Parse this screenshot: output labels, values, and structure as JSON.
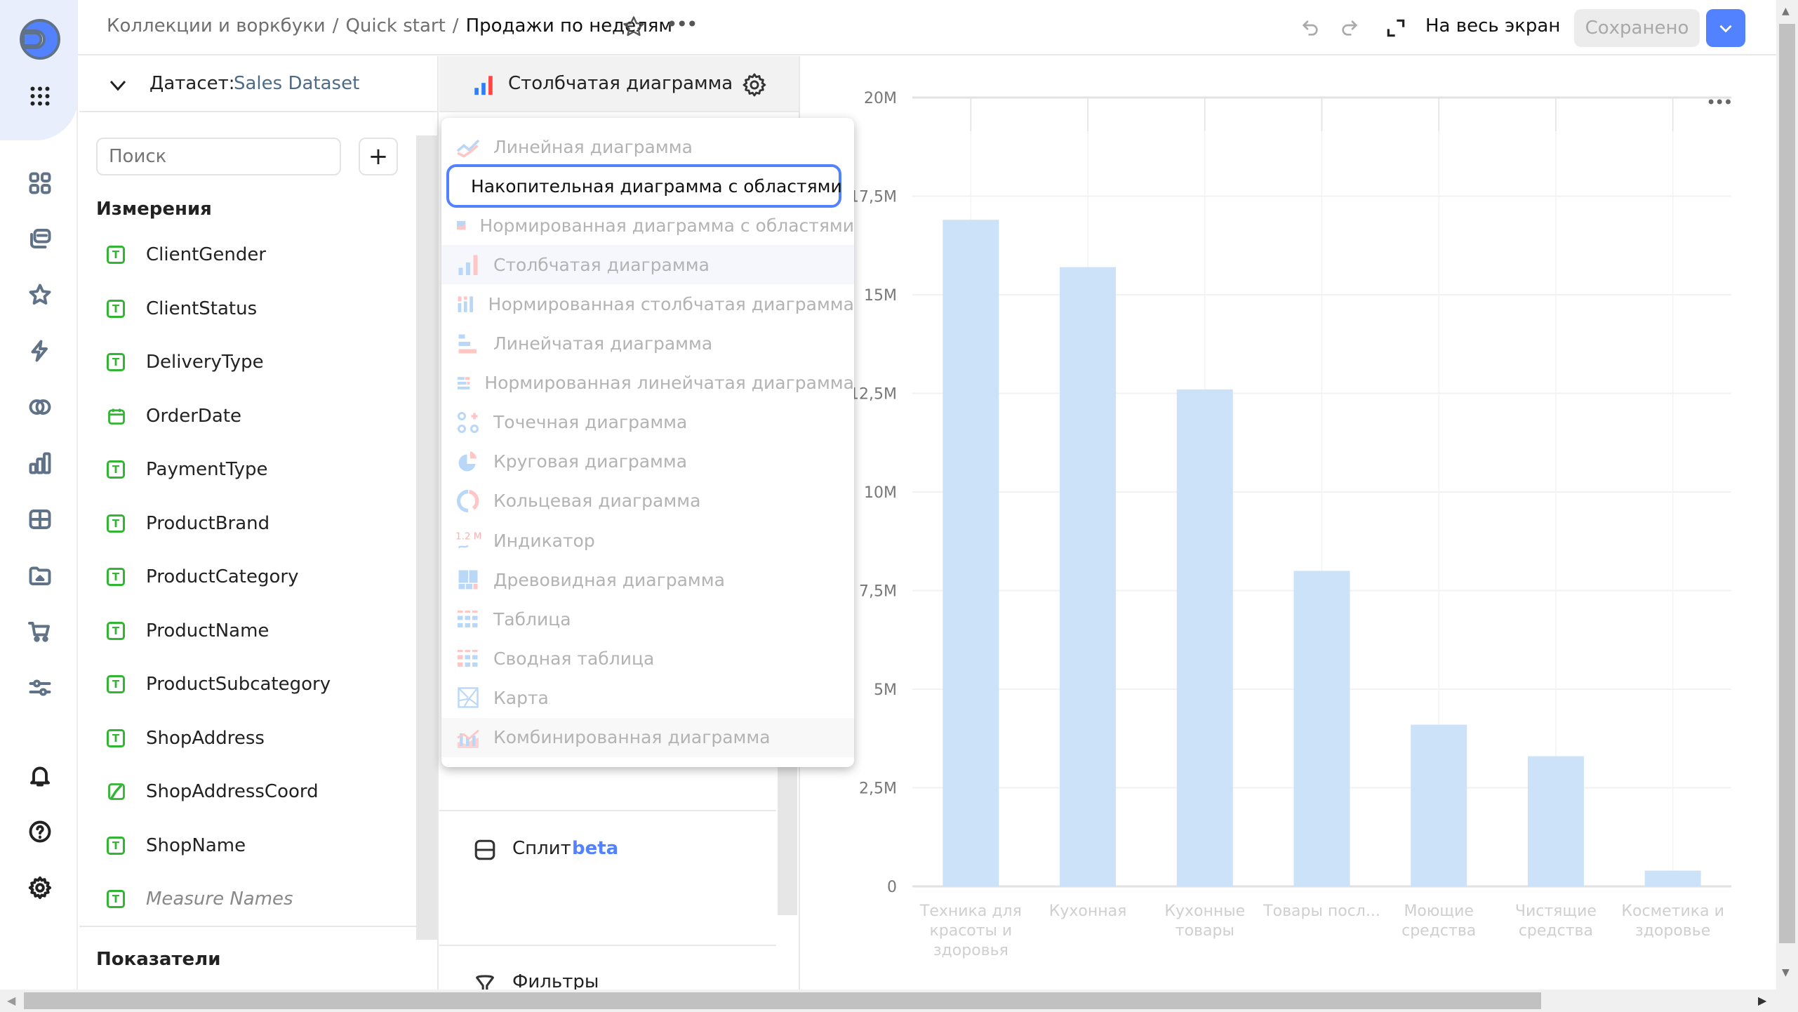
{
  "header": {
    "breadcrumbs": [
      "Коллекции и воркбуки",
      "Quick start"
    ],
    "separator": "/",
    "title": "Продажи по неделям",
    "fullscreen_label": "На весь экран",
    "saved_label": "Сохранено"
  },
  "rail": {
    "icons": [
      "logo-icon",
      "apps-grid-icon",
      "dashboards-icon",
      "collections-icon",
      "favorites-icon",
      "lightning-icon",
      "connections-icon",
      "charts-icon",
      "datasets-icon",
      "folder-icon",
      "cart-icon",
      "settings-sliders-icon",
      "bell-icon",
      "help-icon",
      "gear-icon"
    ]
  },
  "dataset_panel": {
    "label": "Датасет:",
    "dataset_name": "Sales Dataset",
    "search_placeholder": "Поиск",
    "add_label": "+",
    "dimensions_title": "Измерения",
    "dimensions": [
      {
        "name": "ClientGender",
        "type": "text"
      },
      {
        "name": "ClientStatus",
        "type": "text"
      },
      {
        "name": "DeliveryType",
        "type": "text"
      },
      {
        "name": "OrderDate",
        "type": "date"
      },
      {
        "name": "PaymentType",
        "type": "text"
      },
      {
        "name": "ProductBrand",
        "type": "text"
      },
      {
        "name": "ProductCategory",
        "type": "text"
      },
      {
        "name": "ProductName",
        "type": "text"
      },
      {
        "name": "ProductSubcategory",
        "type": "text"
      },
      {
        "name": "ShopAddress",
        "type": "text"
      },
      {
        "name": "ShopAddressCoord",
        "type": "geo"
      },
      {
        "name": "ShopName",
        "type": "text"
      },
      {
        "name": "Measure Names",
        "type": "text",
        "italic": true
      }
    ],
    "measures_title": "Показатели"
  },
  "viz_panel": {
    "current_type": "Столбчатая диаграмма",
    "split_label": "Сплит",
    "split_badge": "beta",
    "filters_label": "Фильтры"
  },
  "chart_type_menu": {
    "selected_index": 1,
    "hovered_index": 3,
    "items": [
      {
        "label": "Линейная диаграмма",
        "icon": "line-chart-icon"
      },
      {
        "label": "Накопительная диаграмма с областями",
        "icon": "stacked-area-icon"
      },
      {
        "label": "Нормированная диаграмма с областями",
        "icon": "normalized-area-icon"
      },
      {
        "label": "Столбчатая диаграмма",
        "icon": "column-chart-icon"
      },
      {
        "label": "Нормированная столбчатая диаграмма",
        "icon": "normalized-column-icon"
      },
      {
        "label": "Линейчатая диаграмма",
        "icon": "bar-chart-icon"
      },
      {
        "label": "Нормированная линейчатая диаграмма",
        "icon": "normalized-bar-icon"
      },
      {
        "label": "Точечная диаграмма",
        "icon": "scatter-icon"
      },
      {
        "label": "Круговая диаграмма",
        "icon": "pie-icon"
      },
      {
        "label": "Кольцевая диаграмма",
        "icon": "donut-icon"
      },
      {
        "label": "Индикатор",
        "icon": "indicator-icon",
        "icon_text": "1.2 M"
      },
      {
        "label": "Древовидная диаграмма",
        "icon": "treemap-icon"
      },
      {
        "label": "Таблица",
        "icon": "table-icon"
      },
      {
        "label": "Сводная таблица",
        "icon": "pivot-table-icon"
      },
      {
        "label": "Карта",
        "icon": "map-icon"
      },
      {
        "label": "Комбинированная диаграмма",
        "icon": "combined-chart-icon"
      }
    ]
  },
  "colors": {
    "accent": "#5282ff",
    "bar": "#cbe2f8",
    "dimension_icon": "#32b532"
  },
  "chart_data": {
    "type": "bar",
    "categories": [
      [
        "Техника для",
        "красоты и",
        "здоровья"
      ],
      [
        "Кухонная"
      ],
      [
        "Кухонные",
        "товары"
      ],
      [
        "Товары посл..."
      ],
      [
        "Моющие",
        "средства"
      ],
      [
        "Чистящие",
        "средства"
      ],
      [
        "Косметика и",
        "здоровье"
      ]
    ],
    "values": [
      16900000,
      15700000,
      12600000,
      8000000,
      4100000,
      3300000,
      400000
    ],
    "ylim": [
      0,
      20000000
    ],
    "yticks": [
      0,
      2500000,
      5000000,
      7500000,
      10000000,
      12500000,
      15000000,
      17500000,
      20000000
    ],
    "ytick_labels": [
      "0",
      "2,5M",
      "5M",
      "7,5M",
      "10M",
      "12,5M",
      "15M",
      "17,5M",
      "20M"
    ],
    "grid": true,
    "title": "",
    "xlabel": "",
    "ylabel": ""
  }
}
